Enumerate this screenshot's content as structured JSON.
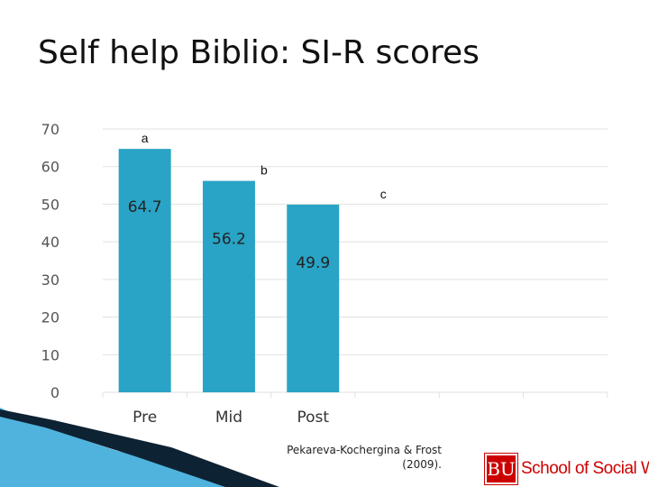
{
  "slide": {
    "title": "Self help Biblio: SI-R scores",
    "citation_line1": "Pekareva-Kochergina & Frost",
    "citation_line2": "(2009).",
    "logo_initials": "BU",
    "logo_text": "School of Social Work",
    "colors": {
      "bar": "#29a4c6",
      "grid": "#e1e1e1",
      "logo": "#cc0000",
      "swoosh_dark": "#0d2233",
      "swoosh_blue": "#4fb3dd"
    }
  },
  "chart_data": {
    "type": "bar",
    "categories": [
      "Pre",
      "Mid",
      "Post"
    ],
    "values": [
      64.7,
      56.2,
      49.9
    ],
    "data_labels": [
      "64.7",
      "56.2",
      "49.9"
    ],
    "significance_letters": [
      "a",
      "b",
      "c"
    ],
    "yticks": [
      0,
      10,
      20,
      30,
      40,
      50,
      60,
      70
    ],
    "ylim": [
      0,
      70
    ],
    "title": "",
    "xlabel": "",
    "ylabel": "",
    "grid": true,
    "legend": "none"
  }
}
